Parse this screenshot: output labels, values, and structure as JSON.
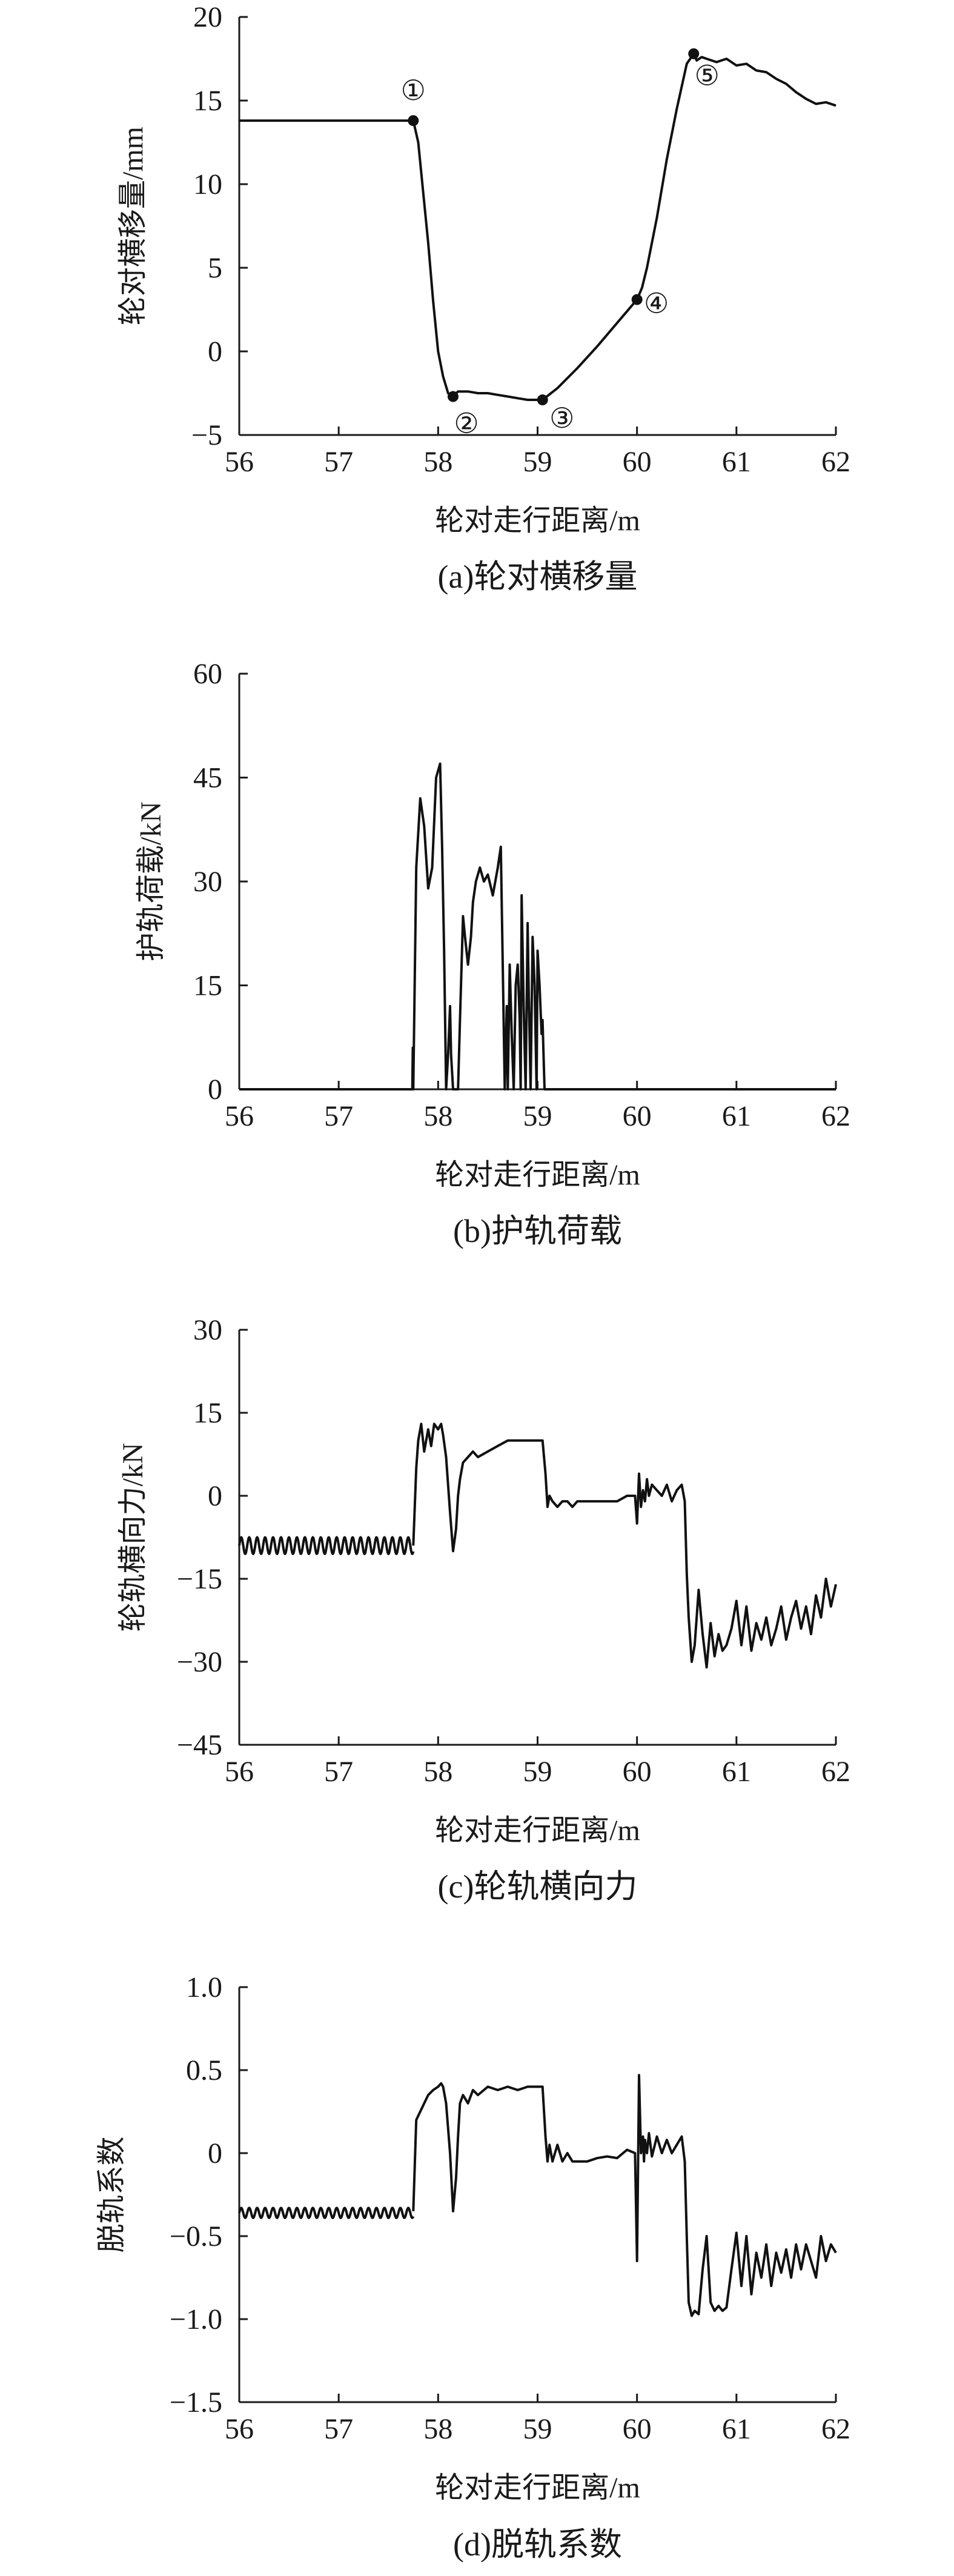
{
  "figure": {
    "panels": [
      {
        "caption": "(a)轮对横移量"
      },
      {
        "caption": "(b)护轨荷载"
      },
      {
        "caption": "(c)轮轨横向力"
      },
      {
        "caption": "(d)脱轨系数"
      }
    ]
  },
  "chart_data": [
    {
      "type": "line",
      "title": "(a)轮对横移量",
      "xlabel": "轮对走行距离/m",
      "ylabel": "轮对横移量/mm",
      "xlim": [
        56,
        62
      ],
      "ylim": [
        -5,
        20
      ],
      "xticks": [
        "56",
        "57",
        "58",
        "59",
        "60",
        "61",
        "62"
      ],
      "yticks": [
        "-5",
        "0",
        "5",
        "10",
        "15",
        "20"
      ],
      "grid": false,
      "series": [
        {
          "x": [
            56,
            56.5,
            57,
            57.5,
            57.75,
            57.8,
            57.85,
            57.9,
            57.95,
            58,
            58.05,
            58.1,
            58.15,
            58.2,
            58.3,
            58.4,
            58.5,
            58.6,
            58.7,
            58.8,
            58.9,
            59.0,
            59.05,
            59.2,
            59.4,
            59.6,
            59.8,
            60.0,
            60.05,
            60.1,
            60.2,
            60.3,
            60.4,
            60.5,
            60.57,
            60.6,
            60.65,
            60.7,
            60.8,
            60.9,
            61.0,
            61.1,
            61.2,
            61.3,
            61.4,
            61.5,
            61.6,
            61.7,
            61.8,
            61.9,
            62.0
          ],
          "y": [
            13.8,
            13.8,
            13.8,
            13.8,
            13.8,
            12.5,
            9.5,
            6.5,
            3.0,
            0.0,
            -1.5,
            -2.5,
            -2.7,
            -2.4,
            -2.4,
            -2.5,
            -2.5,
            -2.6,
            -2.7,
            -2.8,
            -2.9,
            -2.9,
            -2.9,
            -2.2,
            -1.0,
            0.3,
            1.7,
            3.1,
            3.8,
            5.0,
            8.0,
            11.5,
            14.5,
            17.2,
            17.8,
            17.4,
            17.6,
            17.5,
            17.3,
            17.5,
            17.1,
            17.2,
            16.8,
            16.7,
            16.3,
            16.0,
            15.5,
            15.1,
            14.8,
            14.9,
            14.7
          ]
        }
      ],
      "annotations": [
        {
          "text": "①",
          "x": 57.75,
          "y": 13.8
        },
        {
          "text": "②",
          "x": 58.15,
          "y": -2.7
        },
        {
          "text": "③",
          "x": 59.05,
          "y": -2.9
        },
        {
          "text": "④",
          "x": 60.0,
          "y": 3.1
        },
        {
          "text": "⑤",
          "x": 60.57,
          "y": 17.8
        }
      ]
    },
    {
      "type": "line",
      "title": "(b)护轨荷载",
      "xlabel": "轮对走行距离/m",
      "ylabel": "护轨荷载/kN",
      "xlim": [
        56,
        62
      ],
      "ylim": [
        0,
        60
      ],
      "xticks": [
        "56",
        "57",
        "58",
        "59",
        "60",
        "61",
        "62"
      ],
      "yticks": [
        "0",
        "15",
        "30",
        "45",
        "60"
      ],
      "grid": false,
      "series": [
        {
          "x": [
            56,
            57.72,
            57.74,
            57.745,
            57.75,
            57.78,
            57.82,
            57.86,
            57.9,
            57.94,
            57.98,
            58.02,
            58.04,
            58.06,
            58.08,
            58.1,
            58.12,
            58.13,
            58.15,
            58.17,
            58.18,
            58.2,
            58.22,
            58.25,
            58.27,
            58.3,
            58.33,
            58.35,
            58.38,
            58.42,
            58.46,
            58.5,
            58.55,
            58.6,
            58.63,
            58.65,
            58.67,
            58.69,
            58.7,
            58.72,
            58.74,
            58.76,
            58.78,
            58.8,
            58.82,
            58.83,
            58.84,
            58.86,
            58.88,
            58.9,
            58.91,
            58.93,
            58.95,
            58.97,
            58.99,
            59.0,
            59.02,
            59.04,
            59.05,
            59.07,
            62
          ],
          "y": [
            0,
            0,
            0,
            6,
            0,
            32,
            42,
            38,
            29,
            32,
            45,
            47,
            35,
            20,
            0,
            5,
            12,
            5,
            0,
            0,
            0,
            0,
            10,
            25,
            22,
            18,
            22,
            27,
            30,
            32,
            30,
            31,
            28,
            32,
            35,
            18,
            0,
            12,
            0,
            18,
            8,
            0,
            15,
            18,
            10,
            0,
            28,
            12,
            0,
            24,
            15,
            0,
            22,
            15,
            0,
            20,
            15,
            8,
            10,
            0,
            0
          ]
        }
      ]
    },
    {
      "type": "line",
      "title": "(c)轮轨横向力",
      "xlabel": "轮对走行距离/m",
      "ylabel": "轮轨横向力/kN",
      "xlim": [
        56,
        62
      ],
      "ylim": [
        -45,
        30
      ],
      "xticks": [
        "56",
        "57",
        "58",
        "59",
        "60",
        "61",
        "62"
      ],
      "yticks": [
        "-45",
        "-30",
        "-15",
        "0",
        "15",
        "30"
      ],
      "grid": false,
      "series": [
        {
          "x": [
            57.75,
            57.78,
            57.8,
            57.83,
            57.86,
            57.9,
            57.93,
            57.96,
            58.0,
            58.03,
            58.05,
            58.08,
            58.12,
            58.15,
            58.18,
            58.2,
            58.22,
            58.25,
            58.3,
            58.35,
            58.4,
            58.5,
            58.6,
            58.7,
            58.8,
            58.9,
            59.0,
            59.05,
            59.08,
            59.1,
            59.12,
            59.15,
            59.2,
            59.25,
            59.3,
            59.35,
            59.4,
            59.5,
            59.6,
            59.7,
            59.8,
            59.9,
            59.98,
            60.0,
            60.02,
            60.04,
            60.06,
            60.08,
            60.1,
            60.12,
            60.15,
            60.2,
            60.25,
            60.3,
            60.35,
            60.4,
            60.45,
            60.48,
            60.5,
            60.52,
            60.55,
            60.58,
            60.62,
            60.66,
            60.7,
            60.74,
            60.78,
            60.82,
            60.86,
            60.9,
            60.95,
            61.0,
            61.05,
            61.1,
            61.15,
            61.2,
            61.25,
            61.3,
            61.35,
            61.4,
            61.45,
            61.5,
            61.55,
            61.6,
            61.65,
            61.7,
            61.75,
            61.8,
            61.85,
            61.9,
            61.95,
            62.0
          ],
          "y": [
            -9,
            5,
            10,
            13,
            8,
            12,
            9,
            13,
            12,
            13,
            11,
            7,
            -3,
            -10,
            -6,
            0,
            3,
            6,
            7,
            8,
            7,
            8,
            9,
            10,
            10,
            10,
            10,
            10,
            4,
            -2,
            0,
            -1,
            -2,
            -1,
            -1,
            -2,
            -1,
            -1,
            -1,
            -1,
            -1,
            0,
            0,
            -5,
            4,
            -2,
            1,
            -1,
            3,
            0,
            2,
            1,
            0,
            2,
            -1,
            1,
            2,
            -1,
            -14,
            -22,
            -30,
            -27,
            -17,
            -25,
            -31,
            -23,
            -29,
            -25,
            -28,
            -27,
            -24,
            -19,
            -27,
            -20,
            -28,
            -23,
            -26,
            -22,
            -27,
            -24,
            -20,
            -26,
            -22,
            -19,
            -24,
            -20,
            -25,
            -18,
            -22,
            -15,
            -20,
            -16
          ]
        },
        {
          "name": "oscillation",
          "x": [
            56,
            57.75
          ],
          "y": [
            -9,
            -9
          ],
          "oscillation": {
            "amplitude": 1.5,
            "period": 0.08
          }
        }
      ]
    },
    {
      "type": "line",
      "title": "(d)脱轨系数",
      "xlabel": "轮对走行距离/m",
      "ylabel": "脱轨系数",
      "xlim": [
        56,
        62
      ],
      "ylim": [
        -1.5,
        1.0
      ],
      "xticks": [
        "56",
        "57",
        "58",
        "59",
        "60",
        "61",
        "62"
      ],
      "yticks": [
        "-1.5",
        "-1.0",
        "-0.5",
        "0",
        "0.5",
        "1.0"
      ],
      "grid": false,
      "series": [
        {
          "x": [
            57.75,
            57.78,
            57.82,
            57.86,
            57.9,
            57.95,
            58.0,
            58.03,
            58.05,
            58.08,
            58.12,
            58.15,
            58.18,
            58.2,
            58.22,
            58.25,
            58.3,
            58.35,
            58.4,
            58.5,
            58.6,
            58.7,
            58.8,
            58.9,
            59.0,
            59.05,
            59.08,
            59.1,
            59.12,
            59.15,
            59.2,
            59.25,
            59.3,
            59.35,
            59.4,
            59.5,
            59.6,
            59.7,
            59.8,
            59.9,
            59.98,
            60.0,
            60.02,
            60.04,
            60.06,
            60.07,
            60.08,
            60.1,
            60.12,
            60.15,
            60.2,
            60.25,
            60.3,
            60.35,
            60.4,
            60.45,
            60.48,
            60.5,
            60.52,
            60.55,
            60.58,
            60.62,
            60.66,
            60.7,
            60.74,
            60.78,
            60.82,
            60.86,
            60.9,
            60.95,
            61.0,
            61.05,
            61.1,
            61.15,
            61.2,
            61.25,
            61.3,
            61.35,
            61.4,
            61.45,
            61.5,
            61.55,
            61.6,
            61.65,
            61.7,
            61.75,
            61.8,
            61.85,
            61.9,
            61.95,
            62.0
          ],
          "y": [
            -0.35,
            0.2,
            0.25,
            0.3,
            0.35,
            0.38,
            0.4,
            0.42,
            0.4,
            0.3,
            0.0,
            -0.35,
            -0.15,
            0.1,
            0.3,
            0.35,
            0.3,
            0.38,
            0.35,
            0.4,
            0.38,
            0.4,
            0.38,
            0.4,
            0.4,
            0.4,
            0.1,
            -0.05,
            0.05,
            -0.05,
            0.05,
            -0.05,
            0.0,
            -0.05,
            -0.05,
            -0.05,
            -0.03,
            -0.02,
            -0.03,
            0.02,
            0.0,
            -0.65,
            0.47,
            0.0,
            0.1,
            -0.05,
            0.08,
            0.0,
            0.12,
            -0.02,
            0.1,
            0.0,
            0.08,
            0.0,
            0.05,
            0.1,
            -0.05,
            -0.5,
            -0.9,
            -0.98,
            -0.95,
            -0.97,
            -0.7,
            -0.5,
            -0.9,
            -0.95,
            -0.92,
            -0.95,
            -0.93,
            -0.7,
            -0.48,
            -0.8,
            -0.5,
            -0.85,
            -0.6,
            -0.75,
            -0.55,
            -0.8,
            -0.6,
            -0.72,
            -0.58,
            -0.75,
            -0.55,
            -0.7,
            -0.55,
            -0.65,
            -0.75,
            -0.5,
            -0.65,
            -0.55,
            -0.6
          ]
        },
        {
          "name": "oscillation",
          "x": [
            56,
            57.75
          ],
          "y": [
            -0.36,
            -0.36
          ],
          "oscillation": {
            "amplitude": 0.03,
            "period": 0.08
          }
        }
      ]
    }
  ]
}
